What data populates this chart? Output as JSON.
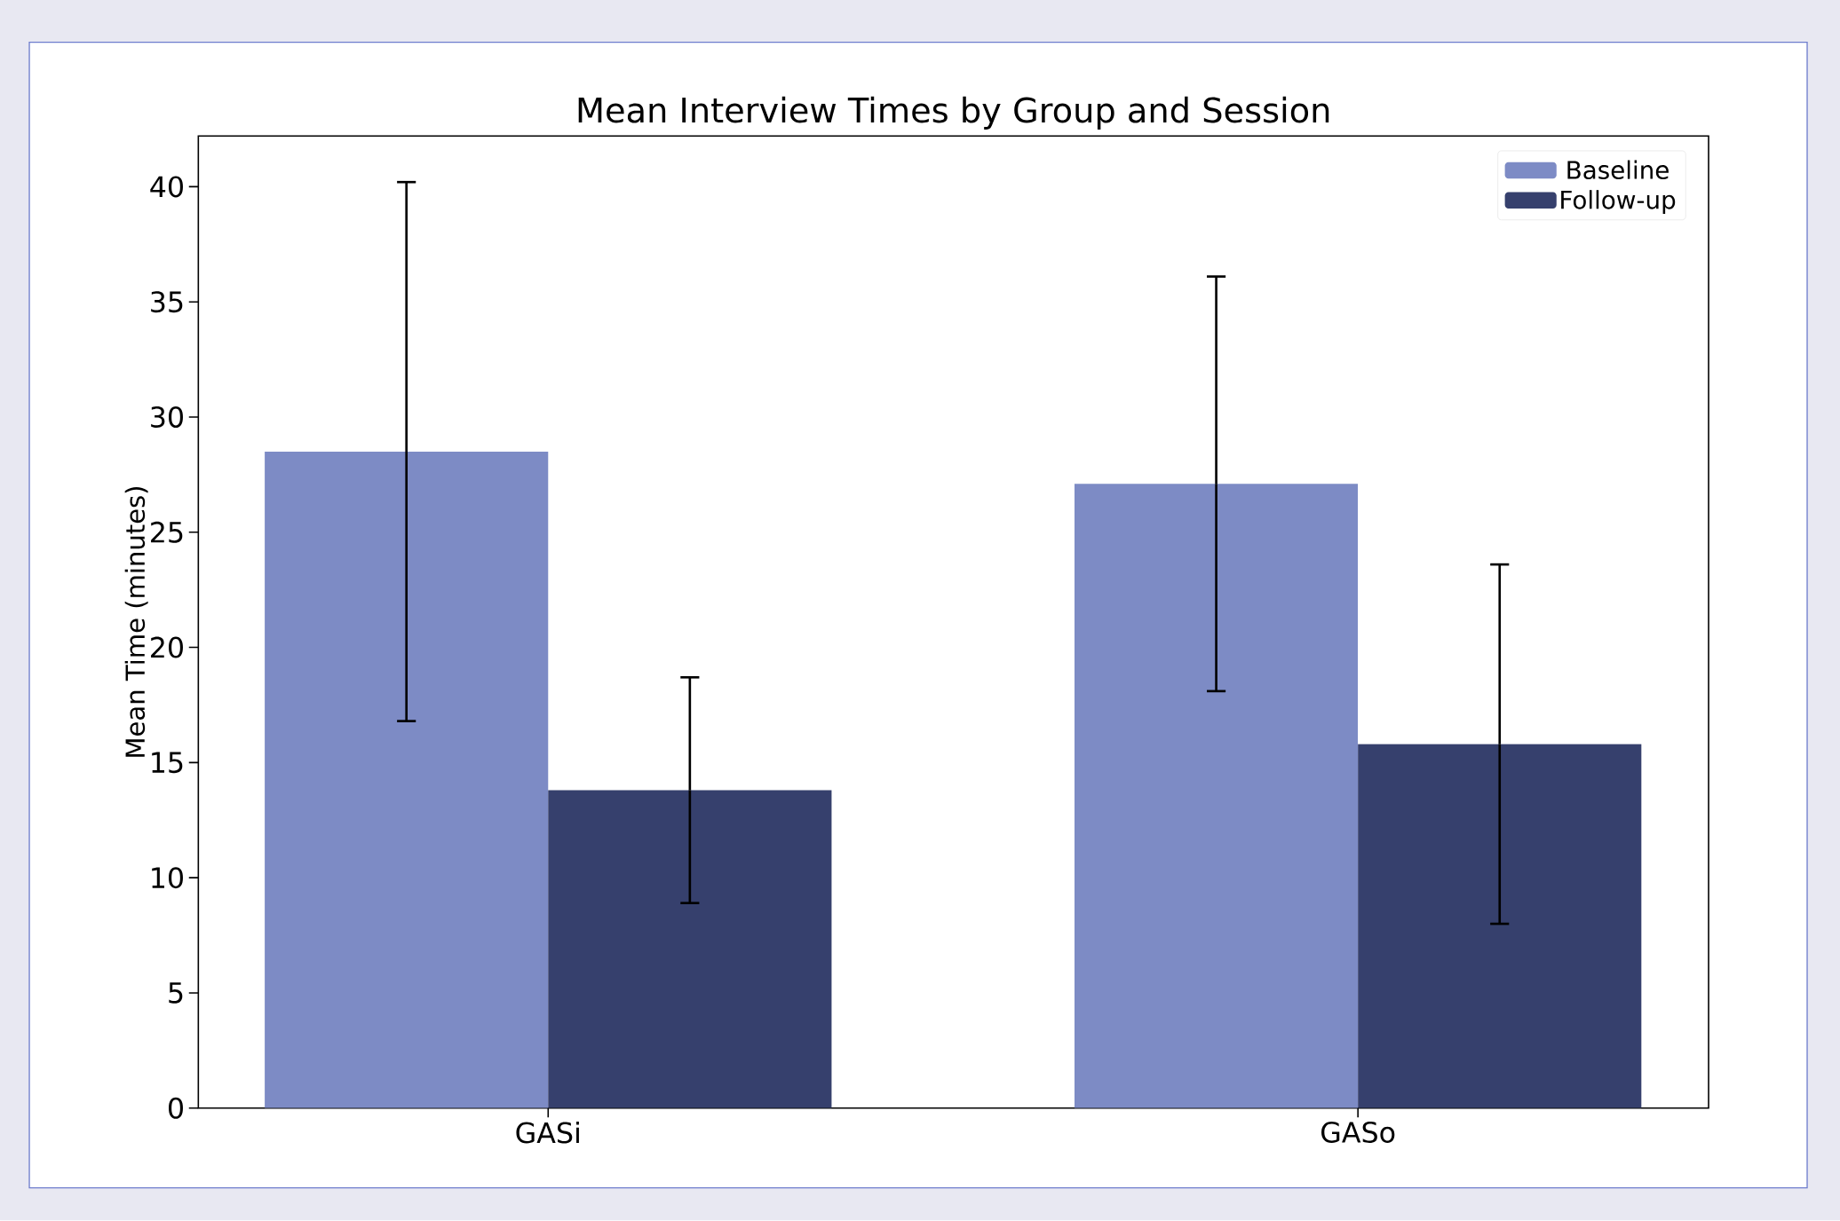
{
  "chart_data": {
    "type": "bar",
    "title": "Mean Interview Times by Group and Session",
    "ylabel": "Mean Time (minutes)",
    "categories": [
      "GASi",
      "GASo"
    ],
    "series": [
      {
        "name": "Baseline",
        "color": "#7d8bc5",
        "values": [
          28.5,
          27.1
        ],
        "errors": [
          11.7,
          9.0
        ]
      },
      {
        "name": "Follow-up",
        "color": "#36406d",
        "values": [
          13.8,
          15.8
        ],
        "errors": [
          4.9,
          7.8
        ]
      }
    ],
    "ylim": [
      0,
      42.2
    ],
    "yticks": [
      0,
      5,
      10,
      15,
      20,
      25,
      30,
      35,
      40
    ],
    "legend": "top right"
  }
}
